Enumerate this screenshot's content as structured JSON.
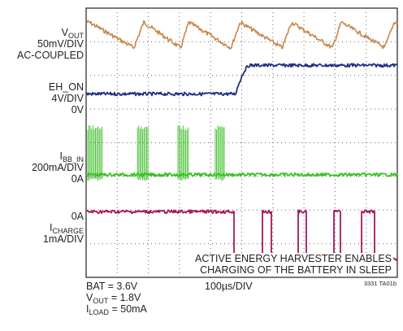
{
  "labels": {
    "vout": {
      "name": "V",
      "sub": "OUT",
      "scale": "50mV/DIV",
      "coupling": "AC-COUPLED"
    },
    "ehon": {
      "name": "EH_ON",
      "scale": "4V/DIV",
      "zero": "0V"
    },
    "ibb": {
      "name": "I",
      "sub": "BB_IN",
      "scale": "200mA/DIV",
      "zero": "0A"
    },
    "icharge": {
      "zero": "0A",
      "name": "I",
      "sub": "CHARGE",
      "scale": "1mA/DIV"
    }
  },
  "annotation": {
    "line1": "ACTIVE ENERGY HARVESTER ENABLES",
    "line2": "CHARGING OF THE BATTERY IN SLEEP"
  },
  "footer": {
    "bat": "BAT = 3.6V",
    "vout_name": "V",
    "vout_sub": "OUT",
    "vout_val": " = 1.8V",
    "iload_name": "I",
    "iload_sub": "LOAD",
    "iload_val": " = 50mA",
    "timebase": "100µs/DIV",
    "figure_id": "3331 TA01b"
  },
  "chart_data": {
    "type": "line",
    "grid": true,
    "x_divisions": 10,
    "y_divisions": 8,
    "xlabel": "100µs/DIV",
    "series": [
      {
        "name": "VOUT",
        "color": "#c8864a",
        "kind": "triangle",
        "center_div": 7.2,
        "amp_div": 0.38,
        "peaks_div": [
          0.1,
          1.85,
          3.3,
          4.95,
          6.6,
          8.2,
          9.9
        ]
      },
      {
        "name": "EH_ON",
        "color": "#1f2f86",
        "kind": "step",
        "low_div": 5.45,
        "high_div": 6.3,
        "rise_start_div": 4.8,
        "rise_end_div": 5.25
      },
      {
        "name": "IBB_IN",
        "color": "#3fbf2b",
        "kind": "bursts",
        "base_div": 3.05,
        "top_div": 4.45,
        "bursts_div": [
          [
            0.05,
            0.55
          ],
          [
            1.65,
            2.0
          ],
          [
            2.95,
            3.3
          ],
          [
            4.15,
            4.45
          ]
        ]
      },
      {
        "name": "ICHARGE",
        "color": "#a5175d",
        "kind": "pulses",
        "high_div": 1.95,
        "low_div": 0.55,
        "low_intervals_div": [
          [
            4.75,
            5.65
          ],
          [
            5.95,
            6.8
          ],
          [
            7.05,
            7.95
          ],
          [
            8.15,
            8.85
          ],
          [
            9.25,
            10.0
          ]
        ]
      }
    ]
  }
}
